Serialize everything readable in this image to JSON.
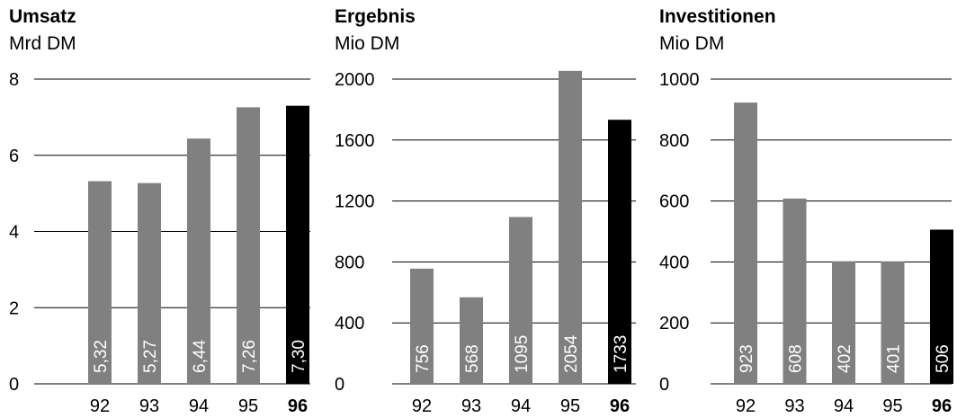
{
  "chart_data": [
    {
      "type": "bar",
      "title": "Umsatz",
      "subtitle": "Mrd DM",
      "categories": [
        "92",
        "93",
        "94",
        "95",
        "96"
      ],
      "values": [
        5.32,
        5.27,
        6.44,
        7.26,
        7.3
      ],
      "value_labels": [
        "5,32",
        "5,27",
        "6,44",
        "7,26",
        "7,30"
      ],
      "yticks": [
        0,
        2,
        4,
        6,
        8
      ],
      "ylim": [
        0,
        8
      ],
      "highlight_category": "96",
      "grid": true
    },
    {
      "type": "bar",
      "title": "Ergebnis",
      "subtitle": "Mio DM",
      "categories": [
        "92",
        "93",
        "94",
        "95",
        "96"
      ],
      "values": [
        756,
        568,
        1095,
        2054,
        1733
      ],
      "value_labels": [
        "756",
        "568",
        "1095",
        "2054",
        "1733"
      ],
      "yticks": [
        0,
        400,
        800,
        1200,
        1600,
        2000
      ],
      "ylim": [
        0,
        2000
      ],
      "highlight_category": "96",
      "grid": true
    },
    {
      "type": "bar",
      "title": "Investitionen",
      "subtitle": "Mio DM",
      "categories": [
        "92",
        "93",
        "94",
        "95",
        "96"
      ],
      "values": [
        923,
        608,
        402,
        401,
        506
      ],
      "value_labels": [
        "923",
        "608",
        "402",
        "401",
        "506"
      ],
      "yticks": [
        0,
        200,
        400,
        600,
        800,
        1000
      ],
      "ylim": [
        0,
        1000
      ],
      "highlight_category": "96",
      "grid": true
    }
  ],
  "colors": {
    "bar": "#808080",
    "highlight_bar": "#000000",
    "grid": "#000000",
    "value_label": "#ffffff"
  }
}
